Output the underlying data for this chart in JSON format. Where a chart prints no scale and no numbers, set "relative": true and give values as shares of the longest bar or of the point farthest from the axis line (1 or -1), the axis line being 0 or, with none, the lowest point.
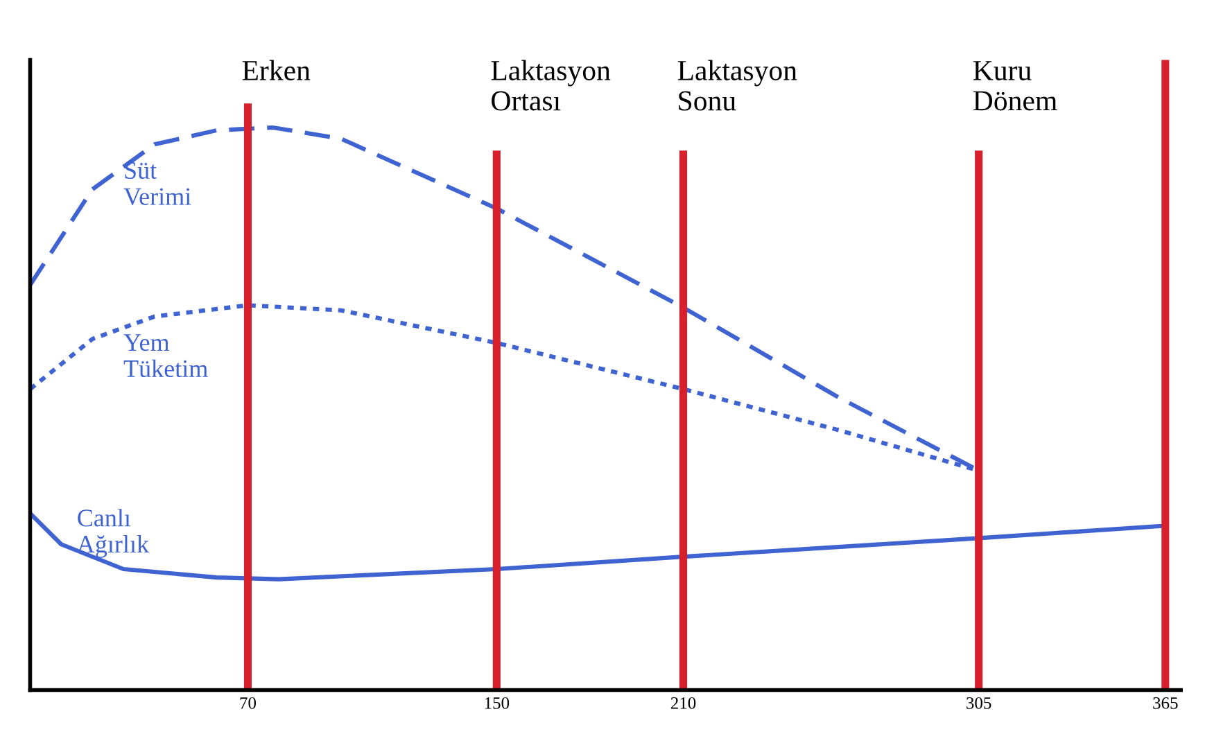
{
  "chart_data": {
    "type": "line",
    "relative": true,
    "xlim": [
      0,
      370
    ],
    "xticks": [
      70,
      150,
      210,
      305,
      365
    ],
    "grid": false,
    "legend": false,
    "marker": "none",
    "series": [
      {
        "name": "Süt Verimi",
        "color": "#3f63d0",
        "line_style": "dashed",
        "x": [
          0,
          20,
          40,
          60,
          78,
          100,
          150,
          210,
          260,
          305
        ],
        "values": [
          0.72,
          0.89,
          0.97,
          0.995,
          1,
          0.98,
          0.856,
          0.68,
          0.52,
          0.39
        ]
      },
      {
        "name": "Yem Tüketim",
        "color": "#3f63d0",
        "line_style": "dotted",
        "x": [
          0,
          20,
          40,
          70,
          100,
          150,
          210,
          260,
          305
        ],
        "values": [
          0.535,
          0.624,
          0.664,
          0.684,
          0.675,
          0.617,
          0.535,
          0.462,
          0.39
        ]
      },
      {
        "name": "Canlı Ağırlık",
        "color": "#3f63d0",
        "line_style": "solid",
        "x": [
          0,
          10,
          30,
          60,
          80,
          150,
          210,
          305,
          365
        ],
        "values": [
          0.314,
          0.259,
          0.215,
          0.2,
          0.197,
          0.215,
          0.237,
          0.27,
          0.292
        ]
      }
    ],
    "ref_lines": [
      {
        "axis": "x",
        "value": 70,
        "label": "Erken",
        "color": "#d8202c"
      },
      {
        "axis": "x",
        "value": 150,
        "label": "Laktasyon\nOrtası",
        "color": "#d8202c"
      },
      {
        "axis": "x",
        "value": 210,
        "label": "Laktasyon\nSonu",
        "color": "#d8202c"
      },
      {
        "axis": "x",
        "value": 305,
        "label": "Kuru\nDönem",
        "color": "#d8202c"
      },
      {
        "axis": "x",
        "value": 365,
        "label": null,
        "color": "#d8202c"
      }
    ]
  }
}
